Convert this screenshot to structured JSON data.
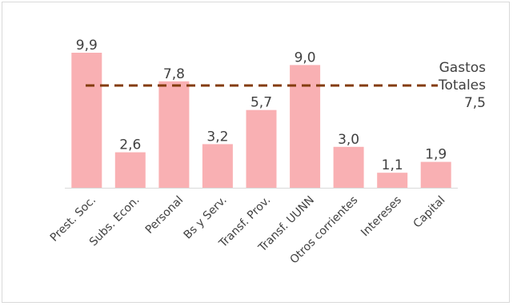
{
  "chart_data": {
    "type": "bar",
    "categories": [
      "Prest. Soc.",
      "Subs. Econ.",
      "Personal",
      "Bs y Serv.",
      "Transf. Prov.",
      "Transf. UUNN",
      "Otros corrientes",
      "Intereses",
      "Capital"
    ],
    "values": [
      9.9,
      2.6,
      7.8,
      3.2,
      5.7,
      9.0,
      3.0,
      1.1,
      1.9
    ],
    "value_labels": [
      "9,9",
      "2,6",
      "7,8",
      "3,2",
      "5,7",
      "9,0",
      "3,0",
      "1,1",
      "1,9"
    ],
    "ylim": [
      0,
      9.9
    ],
    "bar_color": "#f9b0b3",
    "reference_line": {
      "value": 7.5,
      "label_lines": [
        "Gastos",
        "Totales",
        "7,5"
      ],
      "color": "#843c0c",
      "style": "dashed"
    },
    "grid": false,
    "legend": "none"
  }
}
